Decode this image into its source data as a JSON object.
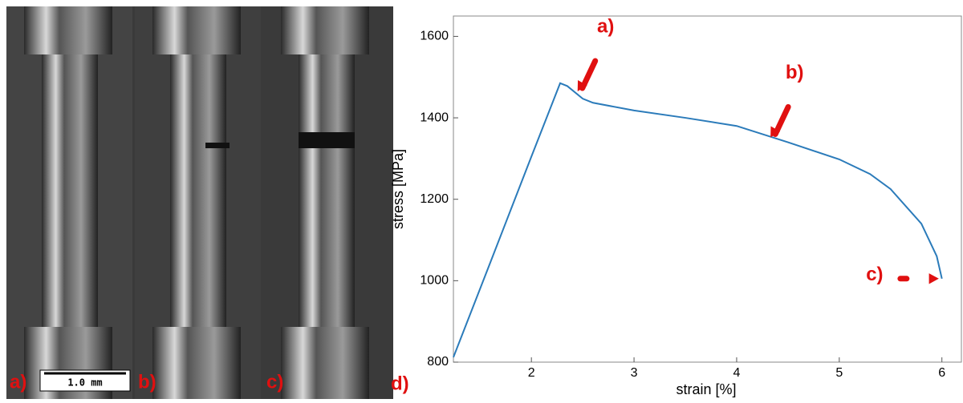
{
  "panels": {
    "labels": [
      "a)",
      "b)",
      "c)"
    ],
    "scale_bar": "1.0 mm",
    "chart_label": "d)"
  },
  "chart_data": {
    "type": "line",
    "x_label": "strain [%]",
    "y_label": "stress [MPa]",
    "x": [
      1.24,
      1.6,
      2.0,
      2.28,
      2.35,
      2.5,
      2.6,
      3.0,
      3.5,
      4.0,
      4.5,
      5.0,
      5.3,
      5.5,
      5.8,
      5.95,
      6.0
    ],
    "series": [
      {
        "color": "#2b7bba",
        "values": [
          812,
          1045,
          1305,
          1485,
          1478,
          1447,
          1437,
          1418,
          1400,
          1380,
          1340,
          1298,
          1262,
          1225,
          1140,
          1060,
          1005
        ]
      }
    ],
    "xlim": [
      1.24,
      6.19
    ],
    "ylim": [
      800,
      1650
    ],
    "xticks": [
      2,
      3,
      4,
      5,
      6
    ],
    "yticks": [
      800,
      1000,
      1200,
      1400,
      1600
    ],
    "annotations": [
      {
        "text": "a)",
        "x": 2.45,
        "y": 1465
      },
      {
        "text": "b)",
        "x": 4.33,
        "y": 1352
      },
      {
        "text": "c)",
        "x": 5.97,
        "y": 1005
      }
    ],
    "annotation_color": "#e01010"
  }
}
